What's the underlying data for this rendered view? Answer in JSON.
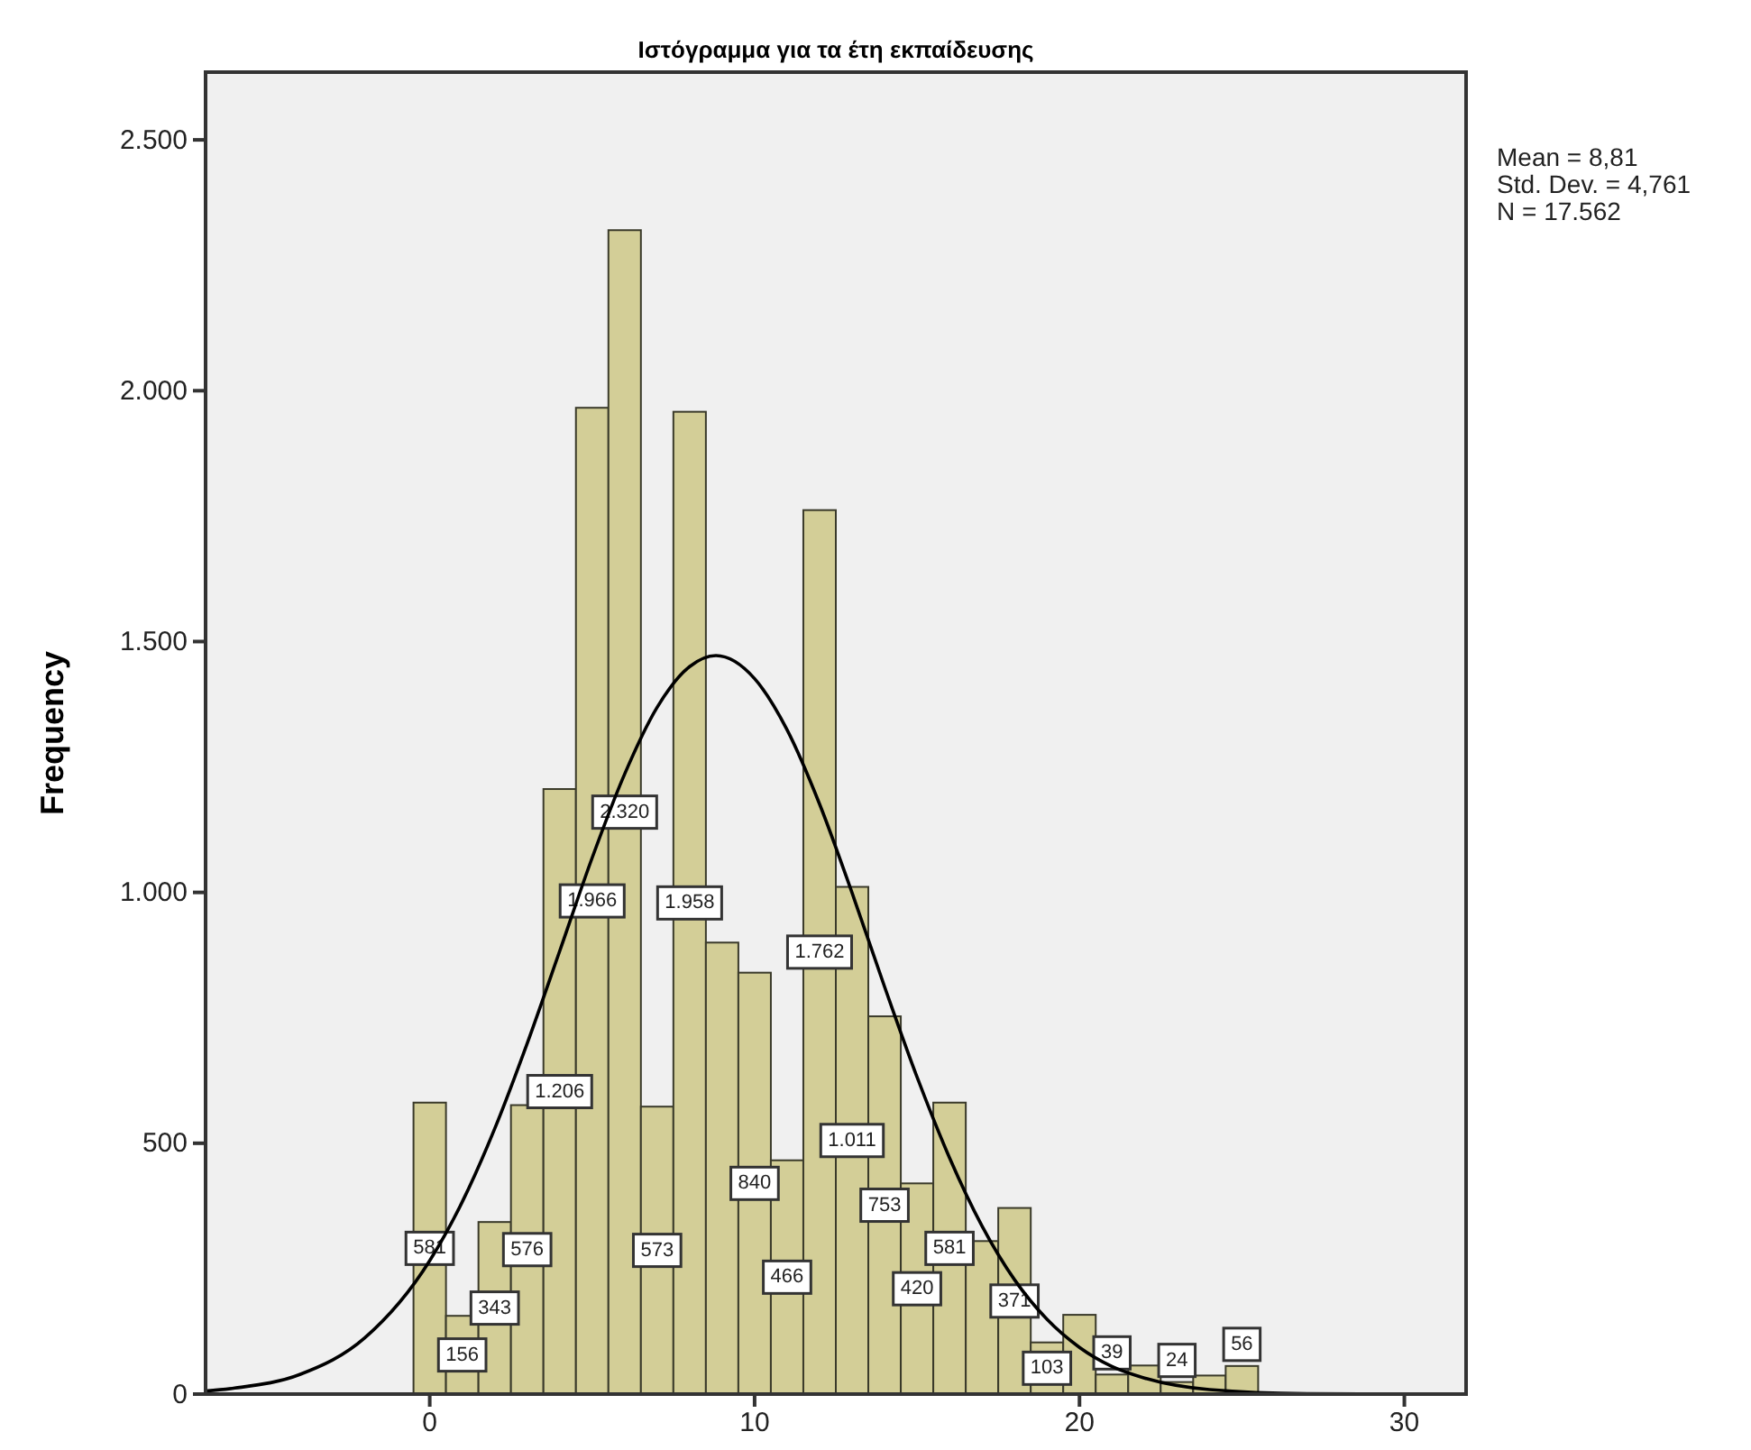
{
  "chart_data": {
    "type": "histogram",
    "title": "Ιστόγραμμα για τα έτη εκπαίδευσης",
    "ylabel": "Frequency",
    "annotations": [
      "Mean = 8,81",
      "Std. Dev. = 4,761",
      "N = 17.562"
    ],
    "xlim": [
      -6.9,
      31.9
    ],
    "xticks": [
      0,
      10,
      20,
      30
    ],
    "ylim": [
      0,
      2635
    ],
    "yticks": [
      {
        "value": 0,
        "label": "0"
      },
      {
        "value": 500,
        "label": "500"
      },
      {
        "value": 1000,
        "label": "1.000"
      },
      {
        "value": 1500,
        "label": "1.500"
      },
      {
        "value": 2000,
        "label": "2.000"
      },
      {
        "value": 2500,
        "label": "2.500"
      }
    ],
    "grid": false,
    "series": [
      {
        "color": "#d3ce97",
        "bins": [
          -0.5,
          0.5,
          1.5,
          2.5,
          3.5,
          4.5,
          5.5,
          6.5,
          7.5,
          8.5,
          9.5,
          10.5,
          11.5,
          12.5,
          13.5,
          14.5,
          15.5,
          16.5,
          17.5,
          18.5,
          19.5,
          20.5,
          21.5,
          22.5,
          23.5,
          24.5,
          25.5
        ],
        "values": [
          581,
          156,
          343,
          576,
          1206,
          1966,
          2320,
          573,
          1958,
          900,
          840,
          466,
          1762,
          1011,
          753,
          420,
          581,
          305,
          371,
          103,
          158,
          39,
          57,
          24,
          37,
          56
        ],
        "value_labels": [
          "581",
          "156",
          "343",
          "576",
          "1.206",
          "1.966",
          "2.320",
          "573",
          "1.958",
          null,
          "840",
          "466",
          "1.762",
          "1.011",
          "753",
          "420",
          "581",
          null,
          "371",
          "103",
          null,
          "39",
          null,
          "24",
          null,
          "56"
        ]
      },
      {
        "type": "line",
        "color": "#000000",
        "x": [
          -6.9,
          -6,
          -4,
          -2,
          0,
          1,
          2,
          3,
          4,
          5,
          6,
          7,
          8,
          8.81,
          10,
          11,
          12,
          13,
          14,
          15,
          16,
          17,
          18,
          19,
          20,
          21,
          22,
          24,
          27,
          31.9
        ],
        "values": [
          6,
          12,
          39,
          112,
          266,
          383,
          529,
          699,
          883,
          1069,
          1236,
          1369,
          1450,
          1472,
          1426,
          1324,
          1176,
          999,
          812,
          632,
          471,
          335,
          228,
          149,
          93,
          55,
          32,
          9,
          1,
          0
        ]
      }
    ]
  }
}
